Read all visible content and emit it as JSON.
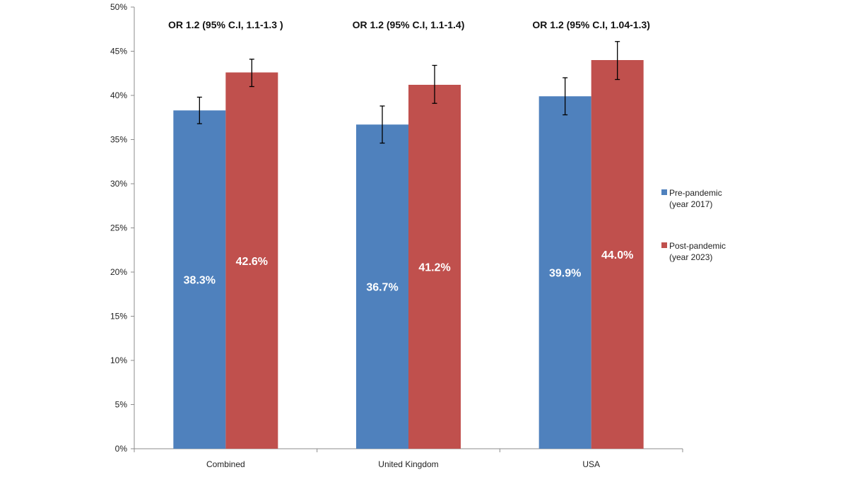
{
  "chart_data": {
    "type": "bar",
    "title": "",
    "xlabel": "",
    "ylabel": "",
    "ylim": [
      0,
      50
    ],
    "y_tick_values": [
      0,
      5,
      10,
      15,
      20,
      25,
      30,
      35,
      40,
      45,
      50
    ],
    "y_tick_labels": [
      "0%",
      "5%",
      "10%",
      "15%",
      "20%",
      "25%",
      "30%",
      "35%",
      "40%",
      "45%",
      "50%"
    ],
    "categories": [
      "Combined",
      "United Kingdom",
      "USA"
    ],
    "annotations": [
      "OR 1.2 (95%  C.I, 1.1-1.3 )",
      "OR 1.2 (95% C.I, 1.1-1.4)",
      "OR 1.2 (95% C.I, 1.04-1.3)"
    ],
    "series": [
      {
        "name": "Pre-pandemic (year 2017)",
        "legend_lines": [
          "Pre-pandemic",
          "(year 2017)"
        ],
        "color": "#4f81bd",
        "values": [
          38.3,
          36.7,
          39.9
        ],
        "value_labels": [
          "38.3%",
          "36.7%",
          "39.9%"
        ],
        "error_low": [
          36.8,
          34.6,
          37.8
        ],
        "error_high": [
          39.8,
          38.8,
          42.0
        ]
      },
      {
        "name": "Post-pandemic (year 2023)",
        "legend_lines": [
          "Post-pandemic",
          "(year 2023)"
        ],
        "color": "#c0504d",
        "values": [
          42.6,
          41.2,
          44.0
        ],
        "value_labels": [
          "42.6%",
          "41.2%",
          "44.0%"
        ],
        "error_low": [
          41.0,
          39.1,
          41.8
        ],
        "error_high": [
          44.1,
          43.4,
          46.1
        ]
      }
    ],
    "legend_position": "right"
  }
}
